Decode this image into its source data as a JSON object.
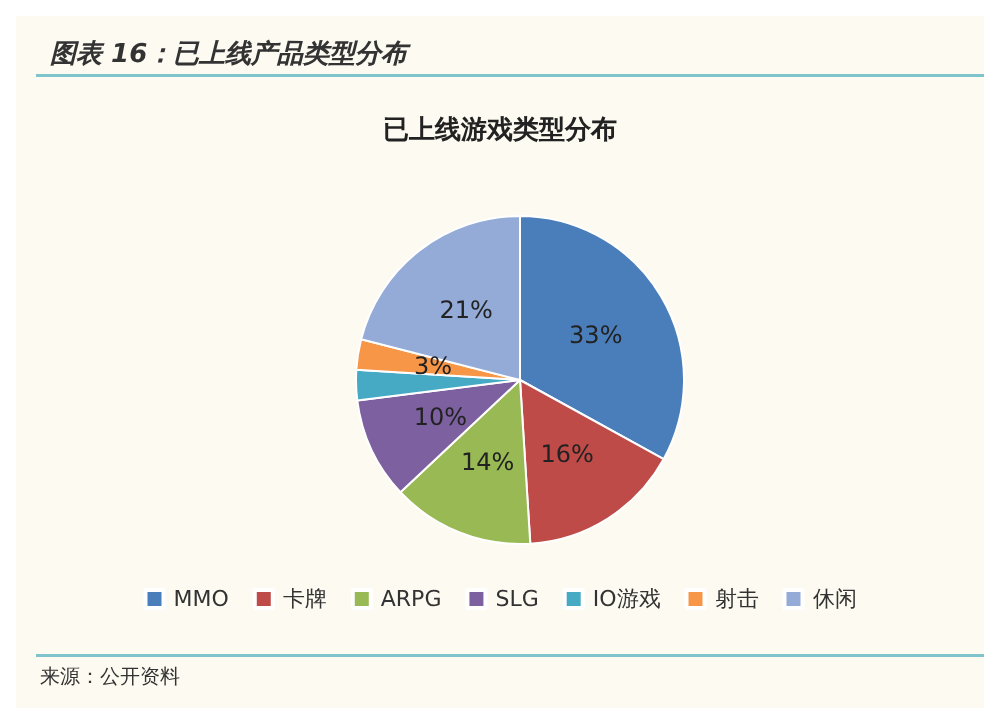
{
  "chart_data": {
    "type": "pie",
    "title": "图表 16：已上线产品类型分布",
    "subtitle": "已上线游戏类型分布",
    "categories": [
      "MMO",
      "卡牌",
      "ARPG",
      "SLG",
      "IO游戏",
      "射击",
      "休闲"
    ],
    "values": [
      33,
      16,
      14,
      10,
      3,
      3,
      21
    ],
    "colors": [
      "#4a7ebb",
      "#be4b48",
      "#98b954",
      "#7d60a0",
      "#46aac5",
      "#f79646",
      "#94abd8"
    ],
    "value_labels": [
      "33%",
      "16%",
      "14%",
      "10%",
      null,
      "3%",
      "21%"
    ],
    "legend": "bottom",
    "annotations": [
      "来源：公开资料"
    ]
  }
}
